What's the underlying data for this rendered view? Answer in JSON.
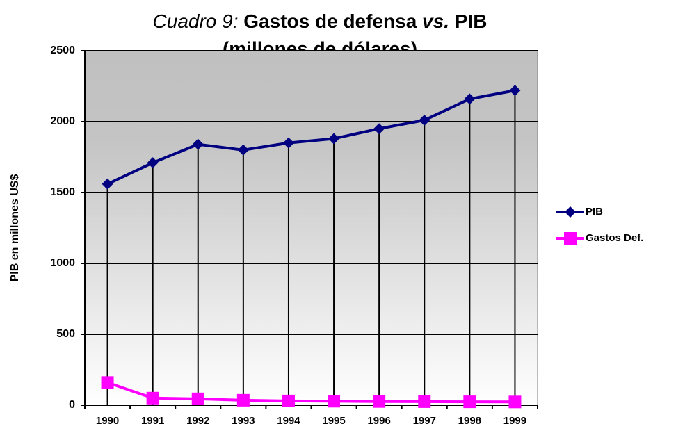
{
  "chart_data": {
    "type": "line",
    "title": [
      "Cuadro 9:",
      "Gastos de defensa",
      "vs.",
      "PIB"
    ],
    "subtitle": "(millones de dólares)",
    "y_label": "PIB en millones US$",
    "categories": [
      "1990",
      "1991",
      "1992",
      "1993",
      "1994",
      "1995",
      "1996",
      "1997",
      "1998",
      "1999"
    ],
    "series": [
      {
        "name": "PIB",
        "color": "#000080",
        "marker": "diamond",
        "values": [
          1560,
          1710,
          1840,
          1800,
          1850,
          1880,
          1950,
          2010,
          2160,
          2220
        ]
      },
      {
        "name": "Gastos Def.",
        "color": "#ff00ff",
        "marker": "square",
        "values": [
          160,
          50,
          45,
          35,
          30,
          28,
          26,
          25,
          24,
          23
        ]
      }
    ],
    "ylim": [
      0,
      2500
    ],
    "yticks": [
      0,
      500,
      1000,
      1500,
      2000,
      2500
    ],
    "grid": true,
    "legend": "right"
  }
}
